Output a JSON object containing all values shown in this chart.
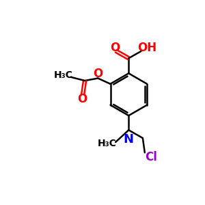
{
  "background": "#ffffff",
  "bond_color": "#000000",
  "bond_lw": 1.8,
  "font_size": 10,
  "fig_size": [
    3.0,
    3.0
  ],
  "dpi": 100,
  "xlim": [
    0.0,
    10.0
  ],
  "ylim": [
    0.0,
    10.0
  ]
}
